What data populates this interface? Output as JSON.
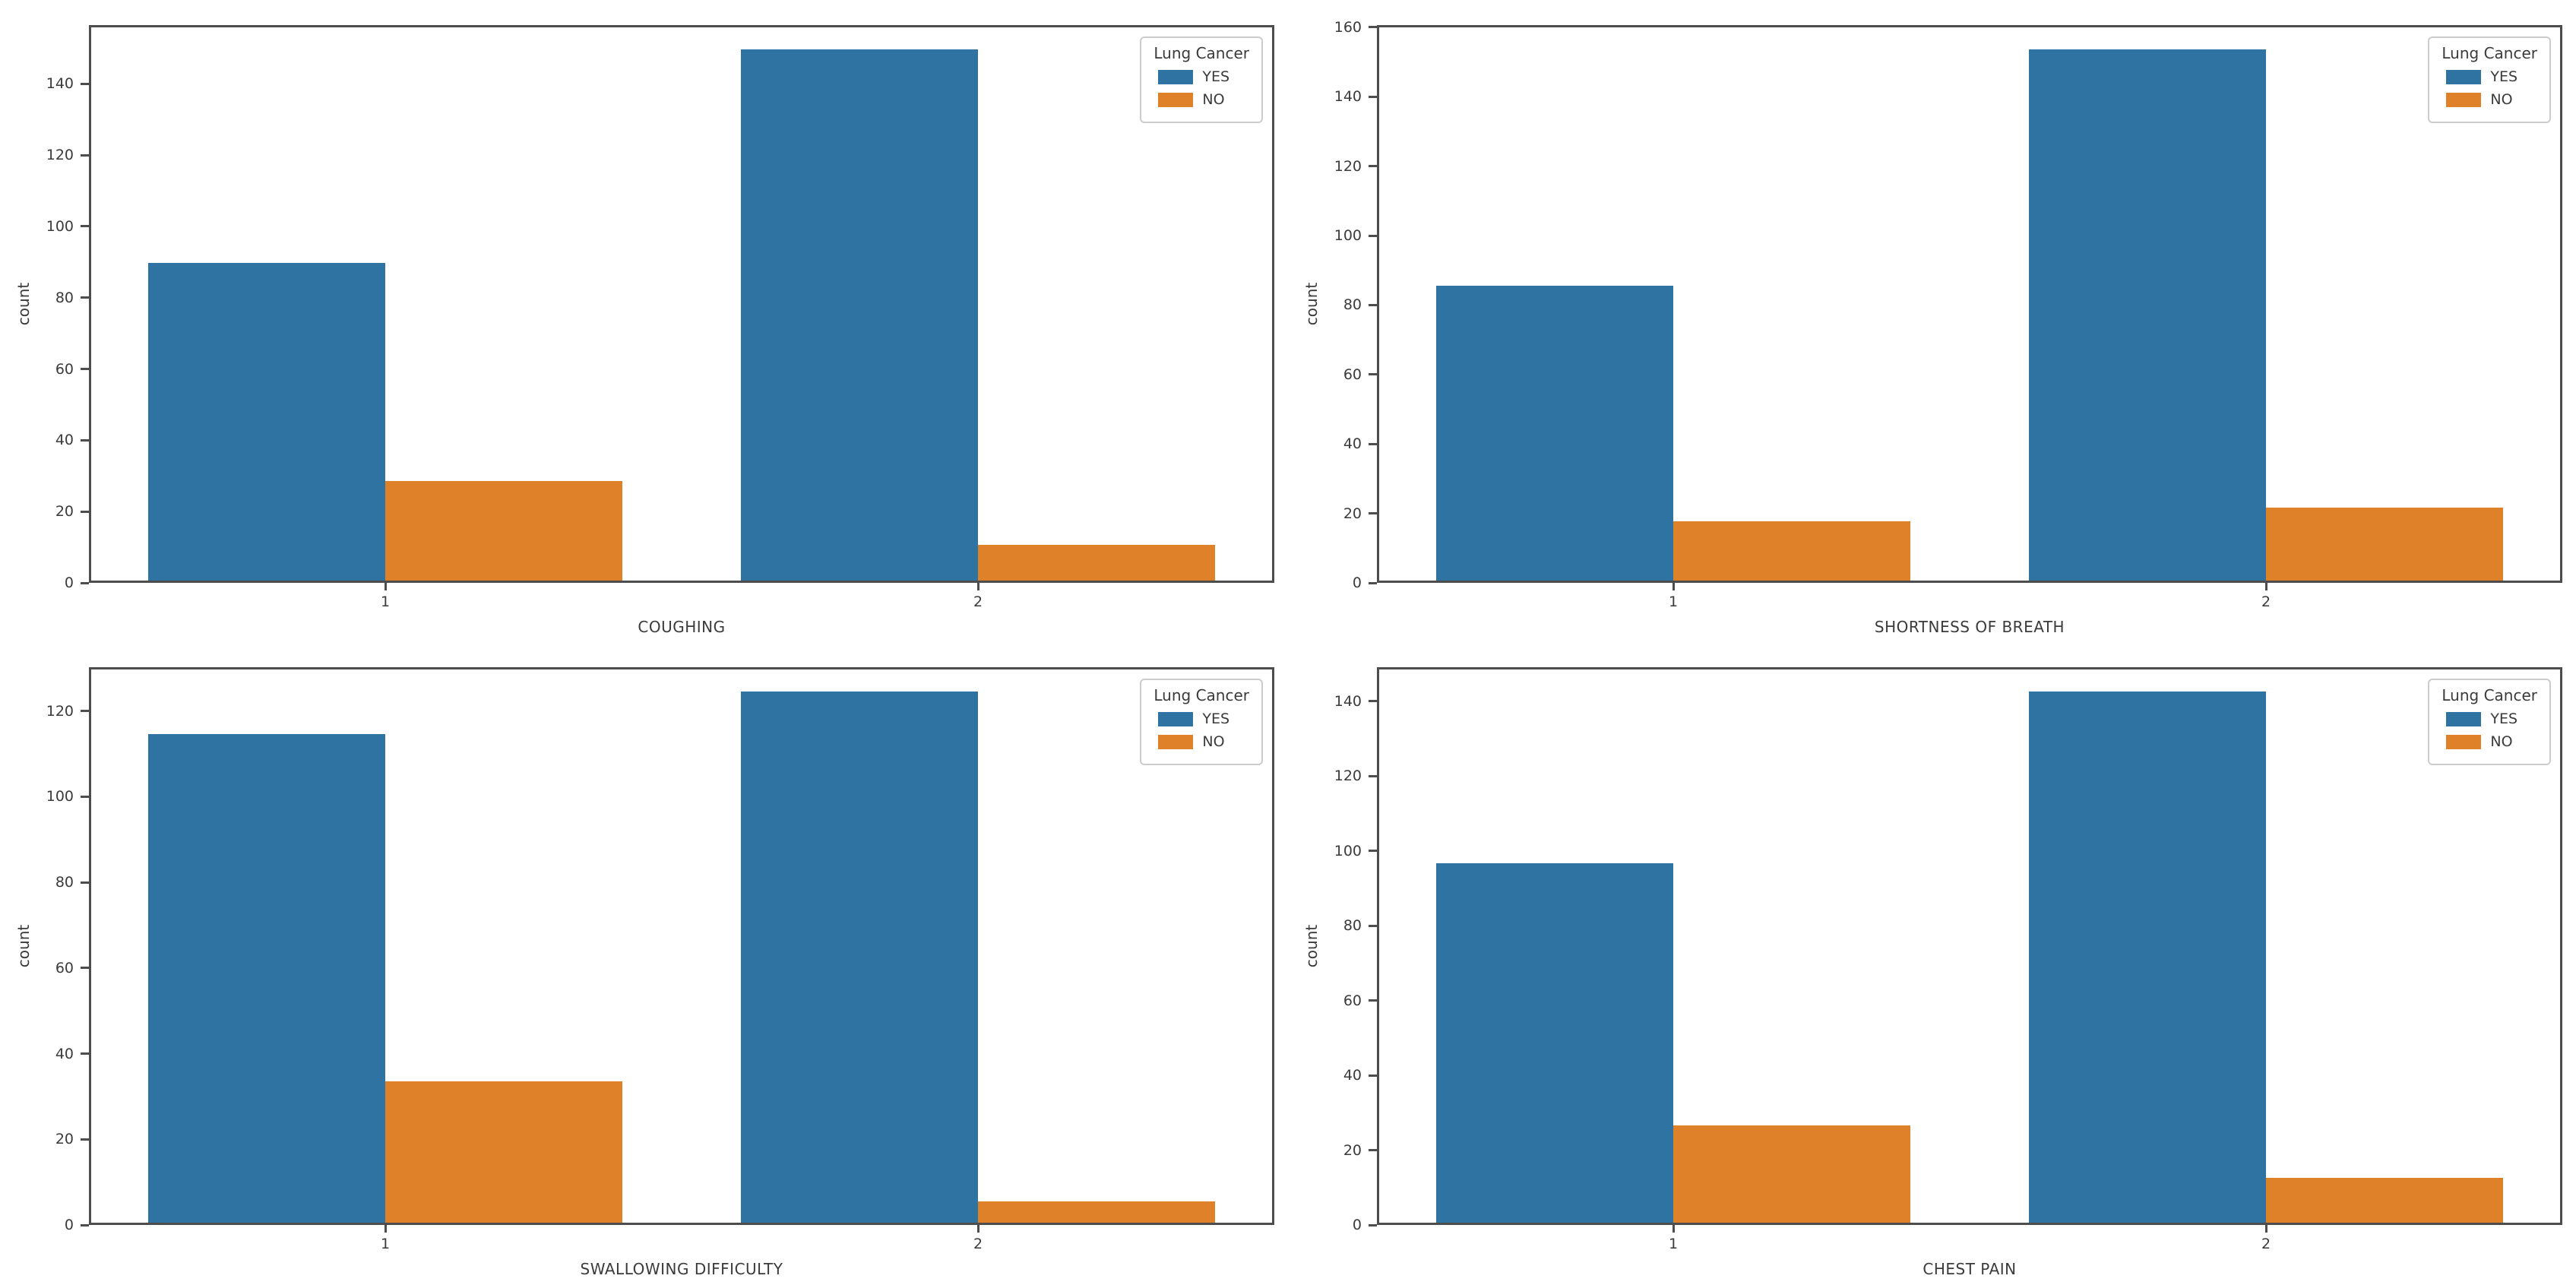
{
  "figure": {
    "background": "#ffffff",
    "text_color": "#3b3b3b",
    "spine_color": "#4d4d4d",
    "legend_border_color": "#cccccc"
  },
  "chart_data": [
    {
      "type": "bar",
      "xlabel": "COUGHING",
      "ylabel": "count",
      "categories": [
        "1",
        "2"
      ],
      "series": [
        {
          "name": "YES",
          "color": "#2e73a2",
          "values": [
            89,
            149
          ]
        },
        {
          "name": "NO",
          "color": "#de8128",
          "values": [
            28,
            10
          ]
        }
      ],
      "yticks": [
        0,
        20,
        40,
        60,
        80,
        100,
        120,
        140
      ],
      "ylim": [
        0,
        156.45
      ],
      "legend_title": "Lung Cancer",
      "legend_position": "upper right",
      "grid": false
    },
    {
      "type": "bar",
      "xlabel": "SHORTNESS OF BREATH",
      "ylabel": "count",
      "categories": [
        "1",
        "2"
      ],
      "series": [
        {
          "name": "YES",
          "color": "#2e73a2",
          "values": [
            85,
            153
          ]
        },
        {
          "name": "NO",
          "color": "#de8128",
          "values": [
            17,
            21
          ]
        }
      ],
      "yticks": [
        0,
        20,
        40,
        60,
        80,
        100,
        120,
        140,
        160
      ],
      "ylim": [
        0,
        160.65
      ],
      "legend_title": "Lung Cancer",
      "legend_position": "upper right",
      "grid": false
    },
    {
      "type": "bar",
      "xlabel": "SWALLOWING DIFFICULTY",
      "ylabel": "count",
      "categories": [
        "1",
        "2"
      ],
      "series": [
        {
          "name": "YES",
          "color": "#2e73a2",
          "values": [
            114,
            124
          ]
        },
        {
          "name": "NO",
          "color": "#de8128",
          "values": [
            33,
            5
          ]
        }
      ],
      "yticks": [
        0,
        20,
        40,
        60,
        80,
        100,
        120
      ],
      "ylim": [
        0,
        130.2
      ],
      "legend_title": "Lung Cancer",
      "legend_position": "upper right",
      "grid": false
    },
    {
      "type": "bar",
      "xlabel": "CHEST PAIN",
      "ylabel": "count",
      "categories": [
        "1",
        "2"
      ],
      "series": [
        {
          "name": "YES",
          "color": "#2e73a2",
          "values": [
            96,
            142
          ]
        },
        {
          "name": "NO",
          "color": "#de8128",
          "values": [
            26,
            12
          ]
        }
      ],
      "yticks": [
        0,
        20,
        40,
        60,
        80,
        100,
        120,
        140
      ],
      "ylim": [
        0,
        149.1
      ],
      "legend_title": "Lung Cancer",
      "legend_position": "upper right",
      "grid": false
    }
  ]
}
